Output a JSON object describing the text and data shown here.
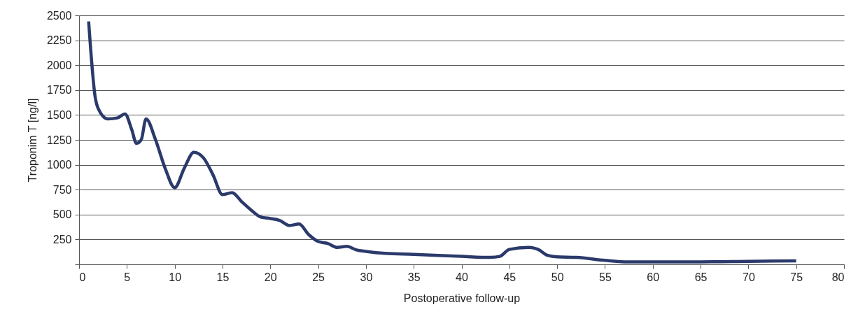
{
  "chart_data": {
    "type": "line",
    "xlabel": "Postoperative follow-up",
    "ylabel": "Troponim T [ng/l]",
    "x": [
      1,
      1.7,
      2,
      3,
      4,
      4.8,
      5.5,
      6,
      6.5,
      7,
      8,
      9,
      10,
      11,
      12,
      13,
      14,
      15,
      16,
      17,
      18,
      19,
      20,
      21,
      22,
      23,
      24,
      25,
      26,
      27,
      28,
      29,
      30,
      32,
      35,
      40,
      43,
      44,
      45,
      47,
      48,
      49,
      50,
      52,
      55,
      57,
      60,
      65,
      70,
      75
    ],
    "series": [
      {
        "color": "#2b3a6b",
        "values": [
          2440,
          1670,
          1565,
          1460,
          1470,
          1510,
          1355,
          1215,
          1250,
          1460,
          1250,
          965,
          770,
          965,
          1125,
          1070,
          900,
          700,
          720,
          630,
          545,
          475,
          460,
          440,
          390,
          405,
          300,
          230,
          210,
          170,
          180,
          145,
          130,
          110,
          100,
          80,
          70,
          80,
          150,
          170,
          150,
          90,
          75,
          70,
          40,
          25,
          25,
          25,
          30,
          35
        ]
      }
    ],
    "xlim": [
      0,
      80
    ],
    "xticks": [
      0,
      5,
      10,
      15,
      20,
      25,
      30,
      35,
      40,
      45,
      50,
      55,
      60,
      65,
      70,
      75,
      80
    ],
    "ylim": [
      0,
      2500
    ],
    "yticks": [
      {
        "value": 0,
        "label": null
      },
      250,
      500,
      750,
      1000,
      1250,
      1500,
      1750,
      2000,
      2250,
      2500
    ],
    "grid": "y",
    "line_style": "solid"
  }
}
